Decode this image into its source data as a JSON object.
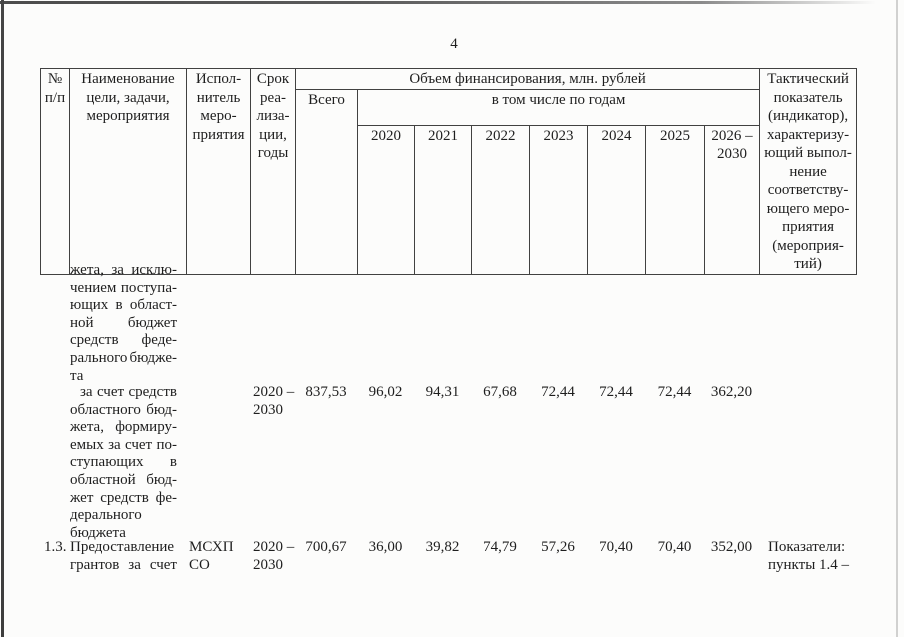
{
  "page_number": "4",
  "table": {
    "header": {
      "no": [
        "№",
        "п/п"
      ],
      "name": [
        "Наименование",
        "цели, задачи,",
        "мероприятия"
      ],
      "executor": [
        "Испол-",
        "нитель",
        "меро-",
        "приятия"
      ],
      "term": [
        "Срок",
        "реа-",
        "лиза-",
        "ции,",
        "годы"
      ],
      "financing_title": "Объем финансирования, млн. рублей",
      "total": "Всего",
      "by_years": "в том числе по годам",
      "years": [
        "2020",
        "2021",
        "2022",
        "2023",
        "2024",
        "2025"
      ],
      "last_year": [
        "2026 –",
        "2030"
      ],
      "indicator": [
        "Тактический",
        "показатель",
        "(индикатор),",
        "характеризу-",
        "ющий выпол-",
        "нение",
        "соответству-",
        "ющего меро-",
        "приятия",
        "(мероприя-",
        "тий)"
      ]
    },
    "rows": [
      {
        "no": "",
        "name": [
          "жета, за исклю-",
          "чением поступа-",
          "ющих в област-",
          "ной бюджет",
          "средств феде-",
          "рального бюдже-",
          "та"
        ],
        "executor": [],
        "term": [],
        "total": "",
        "values": [
          "",
          "",
          "",
          "",
          "",
          "",
          ""
        ],
        "indicator": []
      },
      {
        "no": "",
        "name": [
          " за счет средств",
          "областного бюд-",
          "жета, формиру-",
          "емых за счет по-",
          "ступающих в",
          "областной бюд-",
          "жет средств фе-",
          "дерального",
          "бюджета"
        ],
        "executor": [],
        "term": [
          "2020 –",
          "2030"
        ],
        "total": "837,53",
        "values": [
          "96,02",
          "94,31",
          "67,68",
          "72,44",
          "72,44",
          "72,44",
          "362,20"
        ],
        "indicator": []
      },
      {
        "no": "1.3.",
        "name": [
          "Предоставление",
          "грантов за счет"
        ],
        "executor": [
          "МСХП",
          "СО"
        ],
        "term": [
          "2020 –",
          "2030"
        ],
        "total": "700,67",
        "values": [
          "36,00",
          "39,82",
          "74,79",
          "57,26",
          "70,40",
          "70,40",
          "352,00"
        ],
        "indicator": [
          "Показатели:",
          "пункты 1.4 –"
        ]
      }
    ]
  }
}
